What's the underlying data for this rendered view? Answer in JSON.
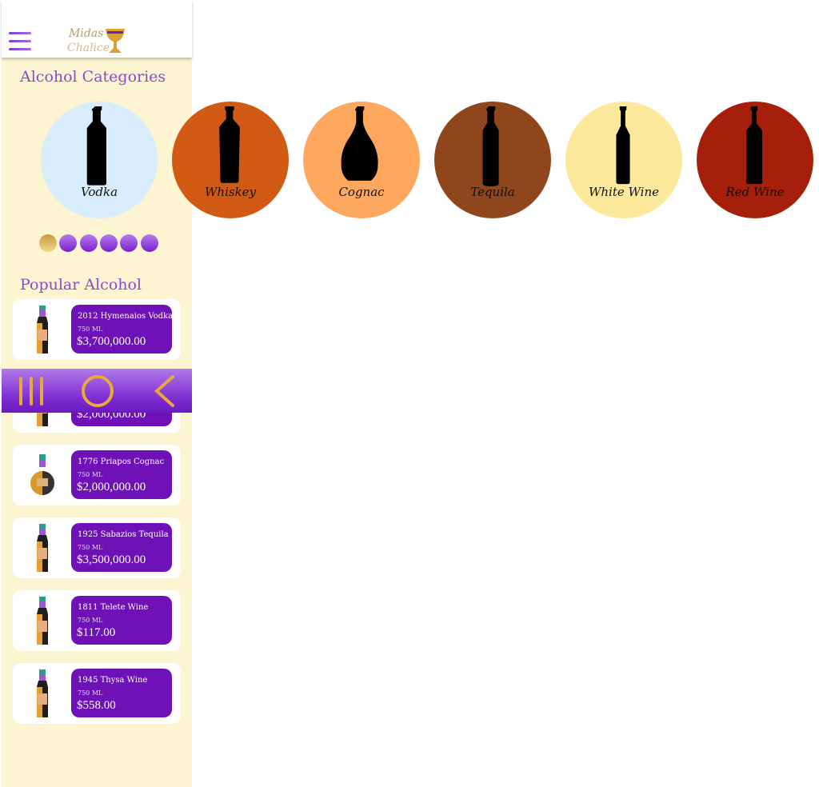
{
  "header": {
    "logo_text": "Midas Chalice",
    "menu_icon": "hamburger-icon"
  },
  "categories_title": "Alcohol Categories",
  "categories": [
    {
      "label": "Vodka",
      "color": "#d8ecfb"
    },
    {
      "label": "Whiskey",
      "color": "#d05a14"
    },
    {
      "label": "Cognac",
      "color": "#fea75f"
    },
    {
      "label": "Tequila",
      "color": "#8f461c"
    },
    {
      "label": "White Wine",
      "color": "#fde99b"
    },
    {
      "label": "Red Wine",
      "color": "#a51f0a"
    }
  ],
  "carousel": {
    "pages": 6,
    "active_index": 0
  },
  "popular_title": "Popular Alcohol",
  "products": [
    {
      "name": "2012 Hymenaios Vodka",
      "volume": "750 ML",
      "price": "$3,700,000.00"
    },
    {
      "name": "",
      "volume": "",
      "price": "$2,000,000.00"
    },
    {
      "name": "1776 Priapos Cognac",
      "volume": "750 ML",
      "price": "$2,000,000.00"
    },
    {
      "name": "1925 Sabazios Tequila",
      "volume": "750 ML",
      "price": "$3,500,000.00"
    },
    {
      "name": "1811 Telete Wine",
      "volume": "750 ML",
      "price": "$117.00"
    },
    {
      "name": "1945 Thysa Wine",
      "volume": "750 ML",
      "price": "$558.00"
    }
  ],
  "navbar": {
    "recent_icon": "recent-apps-icon",
    "home_icon": "home-circle-icon",
    "back_icon": "back-chevron-icon",
    "accent": "#e8a93c"
  }
}
